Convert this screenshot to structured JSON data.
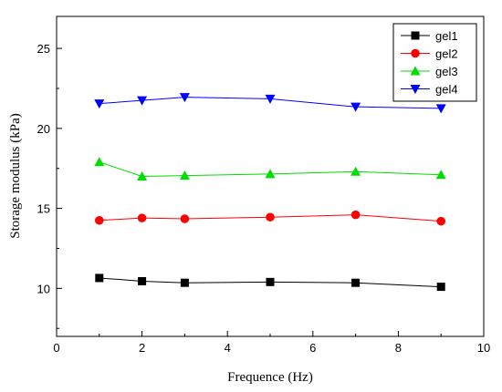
{
  "chart_data": {
    "type": "line",
    "xlabel": "Frequence (Hz)",
    "ylabel": "Storage modulus (kPa)",
    "xlim": [
      0,
      10
    ],
    "ylim": [
      7,
      27
    ],
    "xticks": [
      "0",
      "2",
      "4",
      "6",
      "8",
      "10"
    ],
    "yticks": [
      "10",
      "15",
      "20",
      "25"
    ],
    "grid": false,
    "legend_position": "top-right",
    "series": [
      {
        "name": "gel1",
        "color": "#000000",
        "marker": "square",
        "x": [
          1,
          2,
          3,
          5,
          7,
          9
        ],
        "values": [
          10.65,
          10.45,
          10.35,
          10.4,
          10.35,
          10.1
        ]
      },
      {
        "name": "gel2",
        "color": "#ff0000",
        "marker": "circle",
        "x": [
          1,
          2,
          3,
          5,
          7,
          9
        ],
        "values": [
          14.25,
          14.4,
          14.35,
          14.45,
          14.6,
          14.2
        ]
      },
      {
        "name": "gel3",
        "color": "#00dd00",
        "marker": "triangle-up",
        "x": [
          1,
          2,
          3,
          5,
          7,
          9
        ],
        "values": [
          17.9,
          17.0,
          17.05,
          17.15,
          17.3,
          17.1
        ]
      },
      {
        "name": "gel4",
        "color": "#0000ff",
        "marker": "triangle-down",
        "x": [
          1,
          2,
          3,
          5,
          7,
          9
        ],
        "values": [
          21.55,
          21.75,
          21.95,
          21.85,
          21.35,
          21.25
        ]
      }
    ]
  }
}
